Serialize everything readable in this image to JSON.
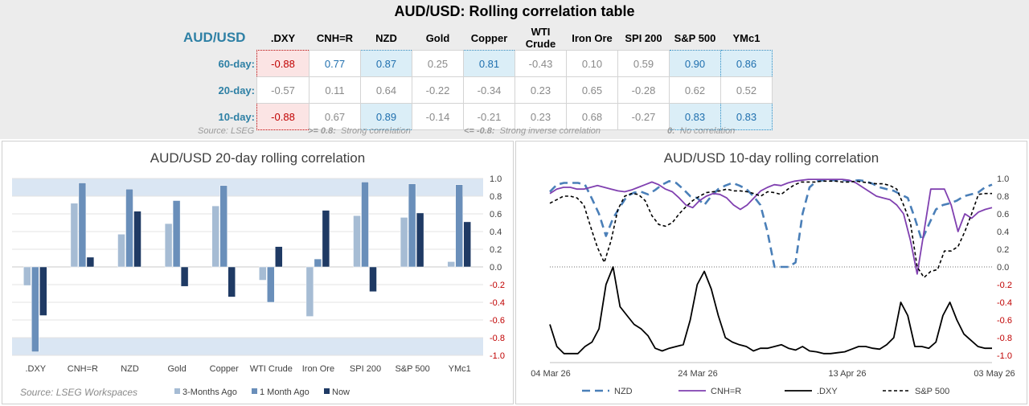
{
  "title": "AUD/USD: Rolling correlation table",
  "table": {
    "corner": "AUD/USD",
    "columns": [
      ".DXY",
      "CNH=R",
      "NZD",
      "Gold",
      "Copper",
      "WTI Crude",
      "Iron Ore",
      "SPI 200",
      "S&P 500",
      "YMc1"
    ],
    "rows": [
      {
        "label": "60-day:",
        "values": [
          "-0.88",
          "0.77",
          "0.87",
          "0.25",
          "0.81",
          "-0.43",
          "0.10",
          "0.59",
          "0.90",
          "0.86"
        ]
      },
      {
        "label": "20-day:",
        "values": [
          "-0.57",
          "0.11",
          "0.64",
          "-0.22",
          "-0.34",
          "0.23",
          "0.65",
          "-0.28",
          "0.62",
          "0.52"
        ]
      },
      {
        "label": "10-day:",
        "values": [
          "-0.88",
          "0.67",
          "0.89",
          "-0.14",
          "-0.21",
          "0.23",
          "0.68",
          "-0.27",
          "0.83",
          "0.83"
        ]
      }
    ],
    "source": "Source: LSEG",
    "legend_strong_key": ">= 0.8:",
    "legend_strong_text": "Strong correlation",
    "legend_inverse_key": "<= -0.8:",
    "legend_inverse_text": "Strong inverse correlation",
    "legend_none_key": "0:",
    "legend_none_text": "No correlation",
    "colors": {
      "positive_fill": "#dbeef7",
      "negative_fill": "#fbe4e4",
      "accent": "#2e80a5"
    }
  },
  "chart_data": [
    {
      "type": "bar",
      "title": "AUD/USD 20-day rolling correlation",
      "source": "Source: LSEG Workspaces",
      "categories": [
        ".DXY",
        "CNH=R",
        "NZD",
        "Gold",
        "Copper",
        "WTI Crude",
        "Iron Ore",
        "SPI 200",
        "S&P 500",
        "YMc1"
      ],
      "ylim": [
        -1.0,
        1.0
      ],
      "yticks": [
        "1.0",
        "0.8",
        "0.6",
        "0.4",
        "0.2",
        "0.0",
        "-0.2",
        "-0.4",
        "-0.6",
        "-0.8",
        "-1.0"
      ],
      "bands": [
        [
          0.8,
          1.0
        ],
        [
          -1.0,
          -0.8
        ]
      ],
      "legend_position": "bottom",
      "series": [
        {
          "name": "3-Months Ago",
          "color": "#a6bcd4",
          "values": [
            -0.21,
            0.72,
            0.37,
            0.49,
            0.69,
            -0.15,
            -0.56,
            0.58,
            0.56,
            0.06
          ]
        },
        {
          "name": "1 Month Ago",
          "color": "#6a8fba",
          "values": [
            -0.96,
            0.95,
            0.88,
            0.75,
            0.92,
            -0.4,
            0.09,
            0.96,
            0.94,
            0.93
          ]
        },
        {
          "name": "Now",
          "color": "#1f3a64",
          "values": [
            -0.55,
            0.11,
            0.63,
            -0.22,
            -0.34,
            0.23,
            0.64,
            -0.28,
            0.61,
            0.51
          ]
        }
      ]
    },
    {
      "type": "line",
      "title": "AUD/USD 10-day rolling correlation",
      "x_labels": [
        "04 Mar 26",
        "24 Mar 26",
        "13 Apr 26",
        "03 May 26"
      ],
      "ylim": [
        -1.0,
        1.0
      ],
      "yticks": [
        "1.0",
        "0.8",
        "0.6",
        "0.4",
        "0.2",
        "0.0",
        "-0.2",
        "-0.4",
        "-0.6",
        "-0.8",
        "-1.0"
      ],
      "legend_position": "bottom",
      "series": [
        {
          "name": "NZD",
          "color": "#4a7fb8",
          "dash": "10,6",
          "width": 2.6,
          "values": [
            0.85,
            0.93,
            0.95,
            0.95,
            0.95,
            0.93,
            0.77,
            0.6,
            0.35,
            0.55,
            0.68,
            0.8,
            0.84,
            0.85,
            0.82,
            0.87,
            0.93,
            0.97,
            0.95,
            0.88,
            0.8,
            0.78,
            0.7,
            0.8,
            0.88,
            0.92,
            0.95,
            0.92,
            0.88,
            0.8,
            0.7,
            0.4,
            0.0,
            0.0,
            0.0,
            0.05,
            0.6,
            0.9,
            0.97,
            0.98,
            0.98,
            0.98,
            0.98,
            0.97,
            0.98,
            0.97,
            0.94,
            0.9,
            0.88,
            0.86,
            0.82,
            0.78,
            0.55,
            0.3,
            0.48,
            0.65,
            0.7,
            0.72,
            0.75,
            0.8,
            0.82,
            0.84,
            0.9,
            0.93
          ]
        },
        {
          "name": "CNH=R",
          "color": "#8040b0",
          "dash": "",
          "width": 1.8,
          "values": [
            0.83,
            0.88,
            0.9,
            0.9,
            0.88,
            0.88,
            0.9,
            0.92,
            0.9,
            0.88,
            0.86,
            0.85,
            0.87,
            0.9,
            0.93,
            0.96,
            0.93,
            0.88,
            0.85,
            0.78,
            0.7,
            0.67,
            0.75,
            0.8,
            0.83,
            0.82,
            0.78,
            0.7,
            0.65,
            0.7,
            0.78,
            0.86,
            0.9,
            0.93,
            0.92,
            0.95,
            0.97,
            0.98,
            0.99,
            0.99,
            0.99,
            0.99,
            0.99,
            0.99,
            0.98,
            0.95,
            0.9,
            0.85,
            0.8,
            0.78,
            0.76,
            0.7,
            0.6,
            0.3,
            -0.08,
            0.4,
            0.88,
            0.88,
            0.88,
            0.7,
            0.4,
            0.6,
            0.55,
            0.62,
            0.65,
            0.67
          ]
        },
        {
          "name": ".DXY",
          "color": "#000000",
          "dash": "",
          "width": 1.8,
          "values": [
            -0.65,
            -0.9,
            -0.98,
            -0.98,
            -0.98,
            -0.9,
            -0.85,
            -0.7,
            -0.2,
            0.0,
            -0.45,
            -0.55,
            -0.65,
            -0.7,
            -0.78,
            -0.92,
            -0.95,
            -0.92,
            -0.9,
            -0.88,
            -0.6,
            -0.2,
            -0.05,
            -0.25,
            -0.55,
            -0.8,
            -0.85,
            -0.88,
            -0.9,
            -0.95,
            -0.92,
            -0.92,
            -0.9,
            -0.88,
            -0.92,
            -0.94,
            -0.9,
            -0.95,
            -0.96,
            -0.98,
            -0.98,
            -0.97,
            -0.96,
            -0.93,
            -0.9,
            -0.9,
            -0.92,
            -0.93,
            -0.88,
            -0.8,
            -0.4,
            -0.55,
            -0.9,
            -0.9,
            -0.92,
            -0.85,
            -0.55,
            -0.4,
            -0.6,
            -0.76,
            -0.83,
            -0.9,
            -0.92,
            -0.92
          ]
        },
        {
          "name": "S&P 500",
          "color": "#000000",
          "dash": "4,3",
          "width": 1.6,
          "values": [
            0.72,
            0.76,
            0.8,
            0.8,
            0.78,
            0.7,
            0.45,
            0.22,
            0.05,
            0.3,
            0.65,
            0.8,
            0.83,
            0.82,
            0.75,
            0.58,
            0.48,
            0.46,
            0.5,
            0.6,
            0.68,
            0.75,
            0.8,
            0.84,
            0.85,
            0.86,
            0.88,
            0.86,
            0.86,
            0.85,
            0.83,
            0.8,
            0.85,
            0.84,
            0.82,
            0.88,
            0.93,
            0.96,
            0.96,
            0.96,
            0.97,
            0.97,
            0.97,
            0.96,
            0.96,
            0.97,
            0.96,
            0.95,
            0.94,
            0.94,
            0.92,
            0.88,
            0.7,
            0.5,
            0.0,
            -0.12,
            -0.05,
            -0.03,
            0.18,
            0.18,
            0.23,
            0.4,
            0.6,
            0.82,
            0.83,
            0.83
          ]
        }
      ]
    }
  ]
}
